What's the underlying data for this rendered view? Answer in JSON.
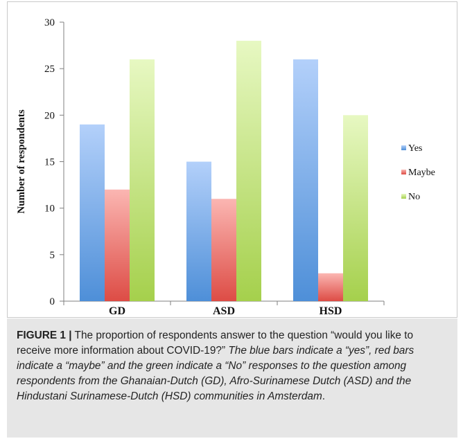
{
  "chart_data": {
    "type": "bar",
    "categories": [
      "GD",
      "ASD",
      "HSD"
    ],
    "series": [
      {
        "name": "Yes",
        "values": [
          19,
          15,
          26
        ],
        "color_top": "#b3d0fa",
        "color_bottom": "#4e8fd8"
      },
      {
        "name": "Maybe",
        "values": [
          12,
          11,
          3
        ],
        "color_top": "#fbb6b2",
        "color_bottom": "#dd4c45"
      },
      {
        "name": "No",
        "values": [
          26,
          28,
          20
        ],
        "color_top": "#e7f8c2",
        "color_bottom": "#a5d04c"
      }
    ],
    "ylabel": "Number of respondents",
    "xlabel": "",
    "ylim": [
      0,
      30
    ],
    "yticks": [
      0,
      5,
      10,
      15,
      20,
      25,
      30
    ],
    "grid": false,
    "legend_position": "right"
  },
  "caption": {
    "figure_label": "FIGURE 1 |",
    "text_regular": " The proportion of respondents answer to the question “would you like to receive more information about COVID-19?”",
    "text_italic_1": " The blue bars indicate a “yes”, red bars indicate a “maybe” and the green indicate a “No” responses to the question among respondents from the Ghanaian-Dutch (GD), Afro-Surinamese Dutch (ASD) and the Hindustani Surinamese-Dutch (HSD) communities in Amsterdam",
    "text_end": "."
  }
}
